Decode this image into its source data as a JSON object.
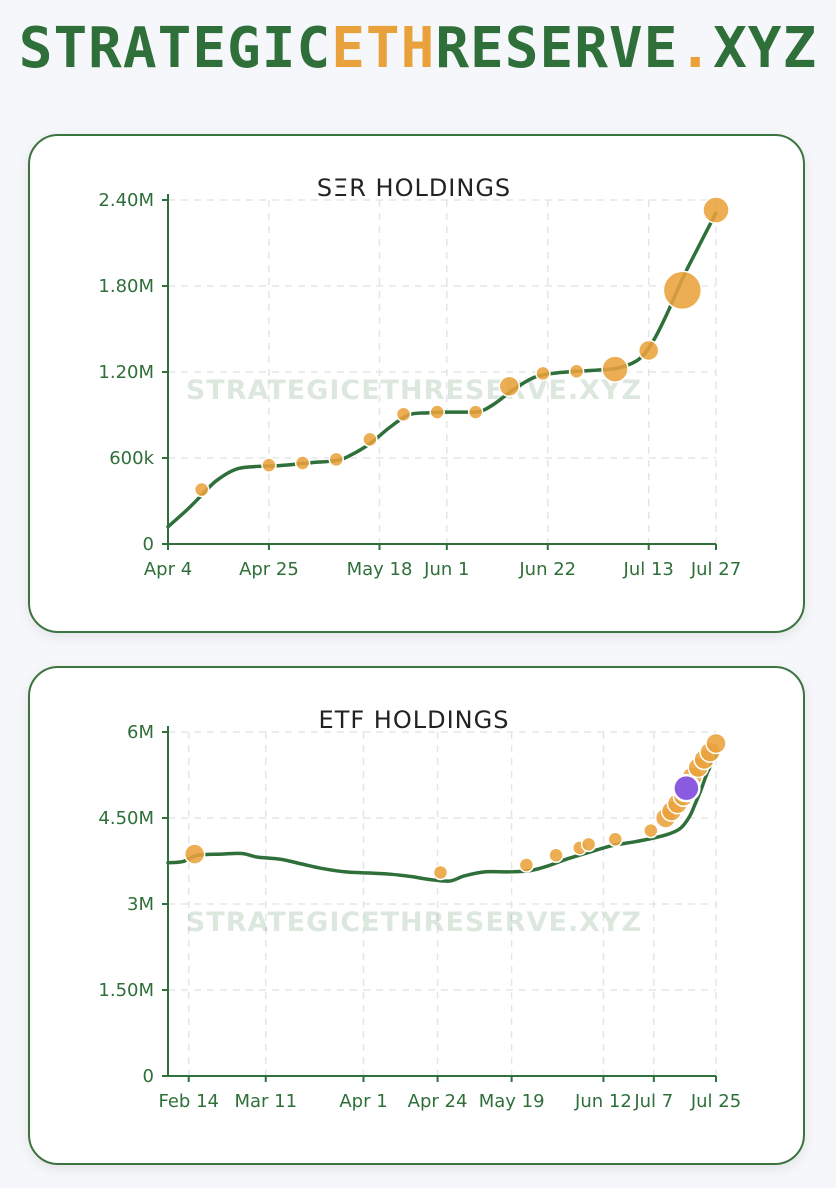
{
  "logo": {
    "part1": "STRATEGIC",
    "part2": "ETH",
    "part3": "RESERVE",
    "part4": ".",
    "part5": "XYZ"
  },
  "colors": {
    "brand": "#2f6f3a",
    "accent": "#e9a23b",
    "purple": "#8a5be0",
    "card_border": "#3c7440"
  },
  "watermark": "STRATEGICETHRESERVE.XYZ",
  "charts": [
    {
      "chart_data": {
        "type": "line",
        "title": "SΞR HOLDINGS",
        "ylim": [
          0,
          2400000
        ],
        "yticks": [
          {
            "v": 0,
            "label": "0"
          },
          {
            "v": 600000,
            "label": "600k"
          },
          {
            "v": 1200000,
            "label": "1.20M"
          },
          {
            "v": 1800000,
            "label": "1.80M"
          },
          {
            "v": 2400000,
            "label": "2.40M"
          }
        ],
        "xlim": [
          0,
          114
        ],
        "xticks": [
          {
            "v": 0,
            "label": "Apr 4"
          },
          {
            "v": 21,
            "label": "Apr 25"
          },
          {
            "v": 44,
            "label": "May 18"
          },
          {
            "v": 58,
            "label": "Jun 1"
          },
          {
            "v": 79,
            "label": "Jun 22"
          },
          {
            "v": 100,
            "label": "Jul 13"
          },
          {
            "v": 114,
            "label": "Jul 27"
          }
        ],
        "line": [
          [
            0,
            120000
          ],
          [
            4,
            240000
          ],
          [
            7,
            340000
          ],
          [
            10,
            440000
          ],
          [
            14,
            520000
          ],
          [
            18,
            540000
          ],
          [
            22,
            545000
          ],
          [
            26,
            555000
          ],
          [
            30,
            568000
          ],
          [
            35,
            582000
          ],
          [
            38,
            620000
          ],
          [
            42,
            700000
          ],
          [
            46,
            810000
          ],
          [
            50,
            900000
          ],
          [
            54,
            915000
          ],
          [
            58,
            920000
          ],
          [
            62,
            920000
          ],
          [
            65,
            925000
          ],
          [
            68,
            980000
          ],
          [
            72,
            1080000
          ],
          [
            76,
            1160000
          ],
          [
            80,
            1190000
          ],
          [
            85,
            1205000
          ],
          [
            90,
            1215000
          ],
          [
            94,
            1230000
          ],
          [
            98,
            1290000
          ],
          [
            101,
            1420000
          ],
          [
            104,
            1620000
          ],
          [
            107,
            1850000
          ],
          [
            110,
            2050000
          ],
          [
            114,
            2310000
          ]
        ],
        "events": [
          {
            "x": 7,
            "y": 380000,
            "size": 1
          },
          {
            "x": 21,
            "y": 550000,
            "size": 1
          },
          {
            "x": 28,
            "y": 565000,
            "size": 1
          },
          {
            "x": 35,
            "y": 590000,
            "size": 1
          },
          {
            "x": 42,
            "y": 730000,
            "size": 1
          },
          {
            "x": 49,
            "y": 905000,
            "size": 1
          },
          {
            "x": 56,
            "y": 920000,
            "size": 1
          },
          {
            "x": 64,
            "y": 920000,
            "size": 1
          },
          {
            "x": 71,
            "y": 1100000,
            "size": 2
          },
          {
            "x": 78,
            "y": 1190000,
            "size": 1
          },
          {
            "x": 85,
            "y": 1205000,
            "size": 1
          },
          {
            "x": 93,
            "y": 1220000,
            "size": 3
          },
          {
            "x": 100,
            "y": 1350000,
            "size": 2
          },
          {
            "x": 107,
            "y": 1770000,
            "size": 4
          },
          {
            "x": 114,
            "y": 2330000,
            "size": 3
          }
        ]
      }
    },
    {
      "chart_data": {
        "type": "line",
        "title": "ETF HOLDINGS",
        "ylim": [
          0,
          6000000
        ],
        "yticks": [
          {
            "v": 0,
            "label": "0"
          },
          {
            "v": 1500000,
            "label": "1.50M"
          },
          {
            "v": 3000000,
            "label": "3M"
          },
          {
            "v": 4500000,
            "label": "4.50M"
          },
          {
            "v": 6000000,
            "label": "6M"
          }
        ],
        "xlim": [
          0,
          185
        ],
        "xticks": [
          {
            "v": 7,
            "label": "Feb 14"
          },
          {
            "v": 33,
            "label": "Mar 11"
          },
          {
            "v": 66,
            "label": "Apr 1"
          },
          {
            "v": 91,
            "label": "Apr 24"
          },
          {
            "v": 116,
            "label": "May 19"
          },
          {
            "v": 147,
            "label": "Jun 12"
          },
          {
            "v": 164,
            "label": "Jul 7"
          },
          {
            "v": 185,
            "label": "Jul 25"
          }
        ],
        "line": [
          [
            0,
            3720000
          ],
          [
            5,
            3740000
          ],
          [
            10,
            3850000
          ],
          [
            18,
            3870000
          ],
          [
            25,
            3880000
          ],
          [
            30,
            3820000
          ],
          [
            38,
            3780000
          ],
          [
            45,
            3700000
          ],
          [
            52,
            3620000
          ],
          [
            60,
            3560000
          ],
          [
            68,
            3540000
          ],
          [
            75,
            3520000
          ],
          [
            82,
            3480000
          ],
          [
            88,
            3430000
          ],
          [
            95,
            3400000
          ],
          [
            100,
            3490000
          ],
          [
            107,
            3560000
          ],
          [
            115,
            3560000
          ],
          [
            122,
            3580000
          ],
          [
            128,
            3660000
          ],
          [
            135,
            3790000
          ],
          [
            142,
            3900000
          ],
          [
            150,
            4020000
          ],
          [
            157,
            4080000
          ],
          [
            163,
            4140000
          ],
          [
            169,
            4220000
          ],
          [
            173,
            4320000
          ],
          [
            176,
            4520000
          ],
          [
            178,
            4750000
          ],
          [
            180,
            5000000
          ],
          [
            182,
            5280000
          ],
          [
            185,
            5600000
          ]
        ],
        "events": [
          {
            "x": 9,
            "y": 3870000,
            "size": 2,
            "color": "orange"
          },
          {
            "x": 92,
            "y": 3550000,
            "size": 1,
            "color": "orange"
          },
          {
            "x": 121,
            "y": 3680000,
            "size": 1,
            "color": "orange"
          },
          {
            "x": 131,
            "y": 3850000,
            "size": 1,
            "color": "orange"
          },
          {
            "x": 139,
            "y": 3980000,
            "size": 1,
            "color": "orange"
          },
          {
            "x": 142,
            "y": 4040000,
            "size": 1,
            "color": "orange"
          },
          {
            "x": 151,
            "y": 4130000,
            "size": 1,
            "color": "orange"
          },
          {
            "x": 163,
            "y": 4280000,
            "size": 1,
            "color": "orange"
          },
          {
            "x": 168,
            "y": 4500000,
            "size": 2,
            "color": "orange"
          },
          {
            "x": 170,
            "y": 4620000,
            "size": 2,
            "color": "orange"
          },
          {
            "x": 172,
            "y": 4750000,
            "size": 2,
            "color": "orange"
          },
          {
            "x": 174,
            "y": 4880000,
            "size": 2,
            "color": "orange"
          },
          {
            "x": 176,
            "y": 5060000,
            "size": 2,
            "color": "orange"
          },
          {
            "x": 177,
            "y": 5220000,
            "size": 2,
            "color": "orange"
          },
          {
            "x": 179,
            "y": 5380000,
            "size": 2,
            "color": "orange"
          },
          {
            "x": 181,
            "y": 5520000,
            "size": 2,
            "color": "orange"
          },
          {
            "x": 183,
            "y": 5650000,
            "size": 2,
            "color": "orange"
          },
          {
            "x": 185,
            "y": 5800000,
            "size": 2,
            "color": "orange"
          },
          {
            "x": 175,
            "y": 5020000,
            "size": 3,
            "color": "purple"
          }
        ]
      }
    }
  ]
}
